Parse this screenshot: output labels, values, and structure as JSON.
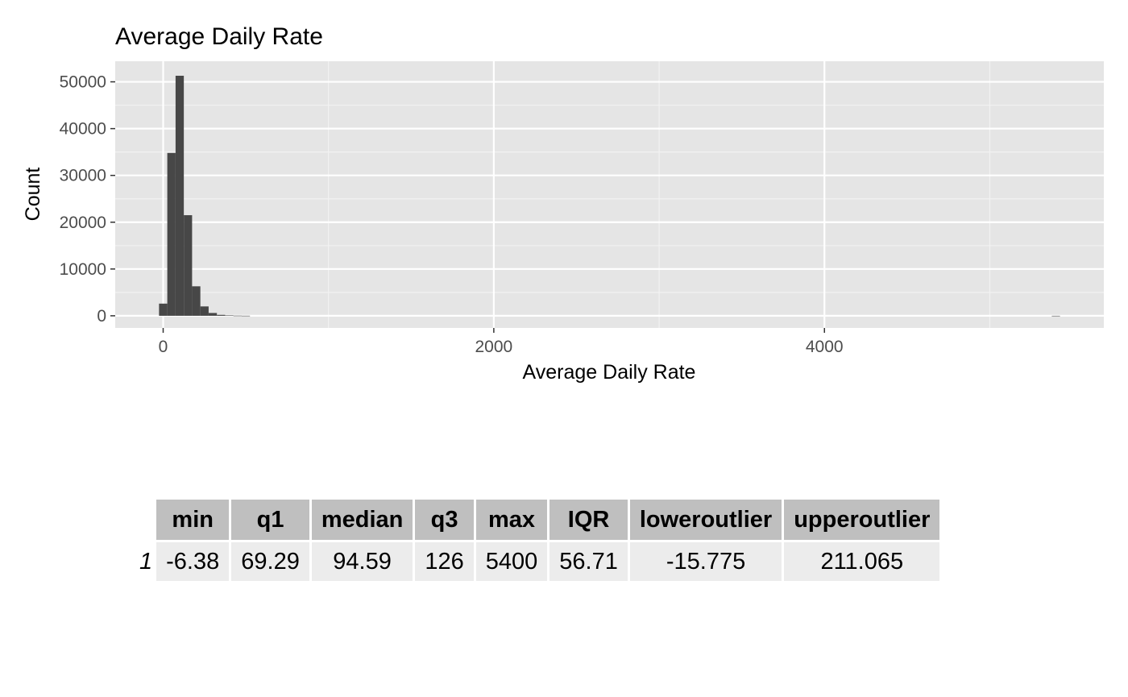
{
  "chart_data": {
    "type": "bar",
    "title": "Average Daily Rate",
    "xlabel": "Average Daily Rate",
    "ylabel": "Count",
    "xlim": [
      -290,
      5690
    ],
    "ylim": [
      -2600,
      54400
    ],
    "x_ticks": [
      0,
      2000,
      4000
    ],
    "x_minor_ticks": [
      1000,
      3000,
      5000
    ],
    "y_ticks": [
      0,
      10000,
      20000,
      30000,
      40000,
      50000
    ],
    "y_minor_ticks": [
      5000,
      15000,
      25000,
      35000,
      45000
    ],
    "bin_width": 50,
    "bins": [
      {
        "x": 0,
        "count": 2600
      },
      {
        "x": 50,
        "count": 34800
      },
      {
        "x": 100,
        "count": 51300
      },
      {
        "x": 150,
        "count": 21500
      },
      {
        "x": 200,
        "count": 6300
      },
      {
        "x": 250,
        "count": 2000
      },
      {
        "x": 300,
        "count": 600
      },
      {
        "x": 350,
        "count": 200
      },
      {
        "x": 400,
        "count": 80
      },
      {
        "x": 450,
        "count": 30
      },
      {
        "x": 500,
        "count": 10
      },
      {
        "x": 5400,
        "count": 1
      }
    ],
    "grid": true,
    "panel_background": "#e5e5e5",
    "bar_color": "#474747"
  },
  "table": {
    "columns": [
      "min",
      "q1",
      "median",
      "q3",
      "max",
      "IQR",
      "loweroutlier",
      "upperoutlier"
    ],
    "rows": [
      {
        "label": "1",
        "values": [
          "-6.38",
          "69.29",
          "94.59",
          "126",
          "5400",
          "56.71",
          "-15.775",
          "211.065"
        ]
      }
    ]
  }
}
